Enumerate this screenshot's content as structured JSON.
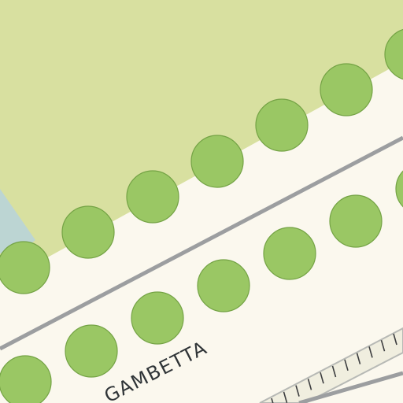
{
  "map": {
    "type": "street-map-tile",
    "street_label": "GAMBETTA",
    "colors": {
      "background": "#fbf8ee",
      "park": "#d8e0a0",
      "water": "#bcd5d3",
      "tree_fill": "#9ac764",
      "tree_stroke": "#74a345",
      "road_line": "#9c9ea0",
      "railway_fill": "#f0eedf",
      "railway_tick": "#3c3d3f",
      "label": "#2f3437"
    },
    "features": [
      "park-area",
      "water-area",
      "tree-row-upper",
      "tree-row-lower",
      "road-line-upper",
      "road-line-lower",
      "railway-track",
      "street-label-gambetta"
    ]
  }
}
